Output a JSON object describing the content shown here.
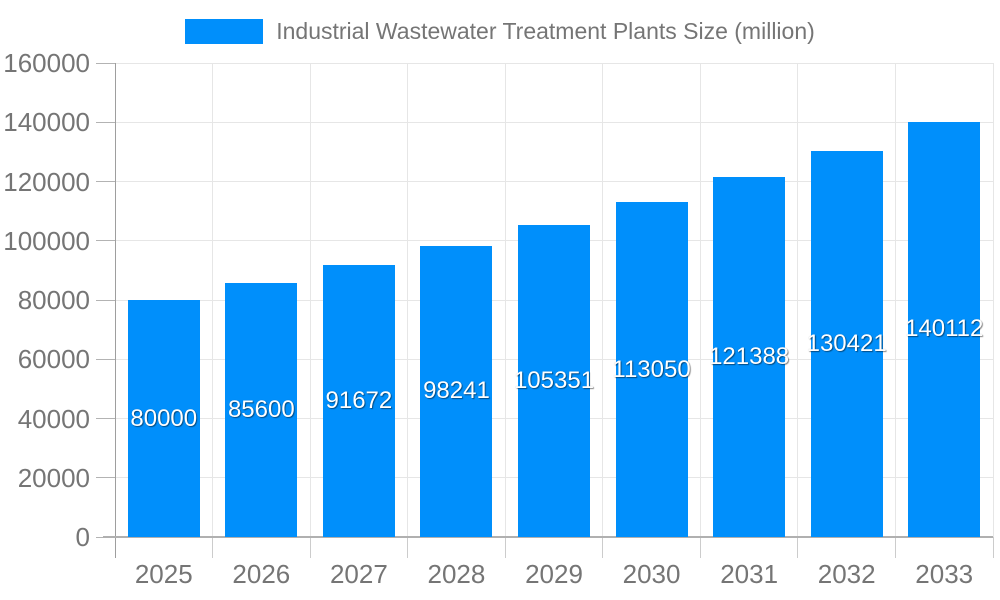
{
  "chart_data": {
    "type": "bar",
    "title": "Industrial Wastewater Treatment Plants Size (million)",
    "categories": [
      "2025",
      "2026",
      "2027",
      "2028",
      "2029",
      "2030",
      "2031",
      "2032",
      "2033"
    ],
    "values": [
      80000,
      85600,
      91672,
      98241,
      105351,
      113050,
      121388,
      130421,
      140112
    ],
    "series": [
      {
        "name": "Industrial Wastewater Treatment Plants Size (million)",
        "values": [
          80000,
          85600,
          91672,
          98241,
          105351,
          113050,
          121388,
          130421,
          140112
        ]
      }
    ],
    "xlabel": "",
    "ylabel": "",
    "ylim": [
      0,
      160000
    ],
    "yticks": [
      0,
      20000,
      40000,
      60000,
      80000,
      100000,
      120000,
      140000,
      160000
    ],
    "ytick_labels": [
      "0",
      "20000",
      "40000",
      "60000",
      "80000",
      "100000",
      "120000",
      "140000",
      "160000"
    ],
    "grid": true,
    "legend_position": "top",
    "data_labels": "inside-center-white"
  },
  "colors": {
    "bar": "#008FFB",
    "bar_label": "#ffffff",
    "axis_text": "#757575",
    "gridline": "#e6e6e6",
    "y_axis_line": "#9e9e9e",
    "baseline": "#b0b0b0",
    "y_tick": "#b3b3b3",
    "x_tick": "#cccccc",
    "background": "#ffffff"
  }
}
